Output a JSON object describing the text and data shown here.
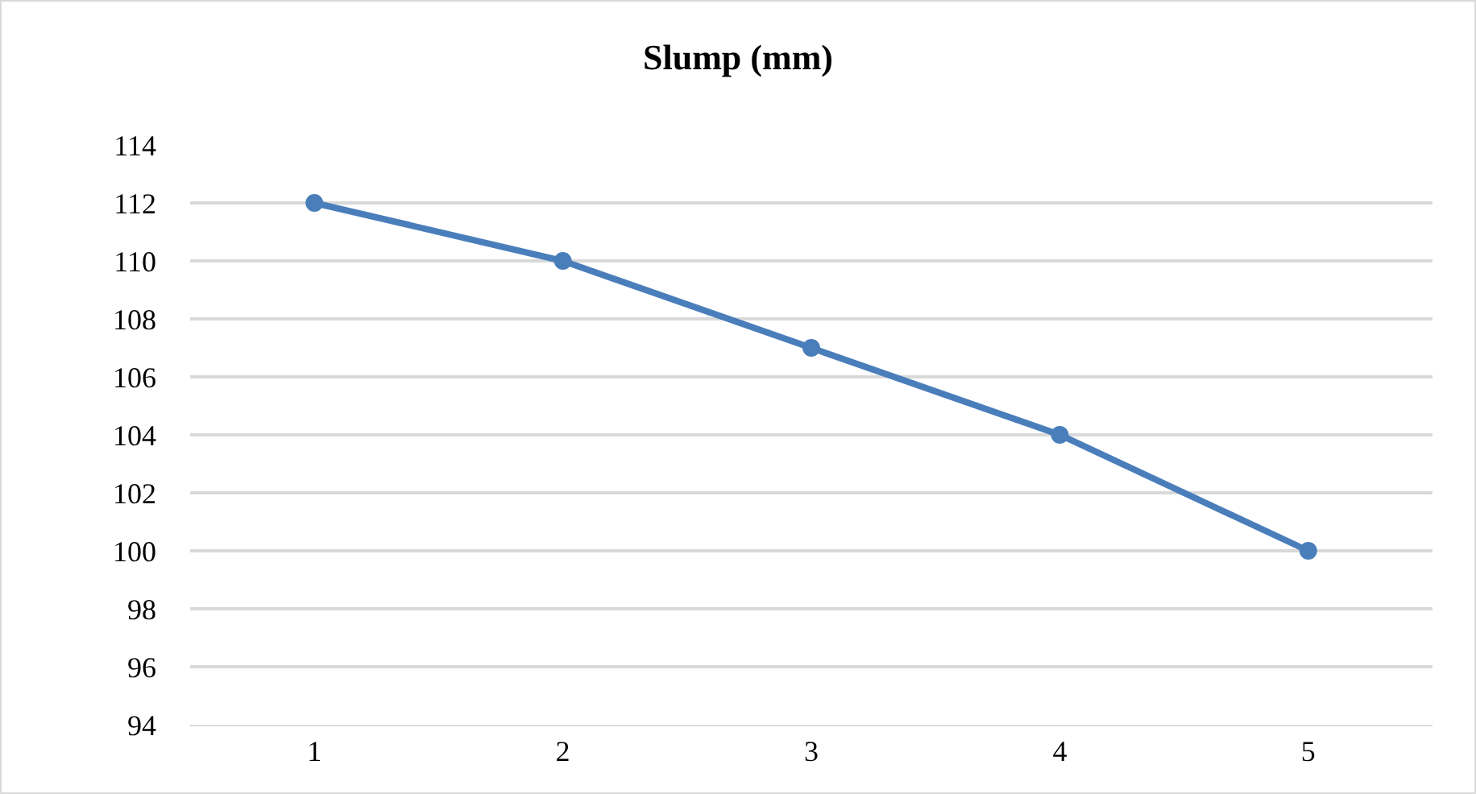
{
  "chart_data": {
    "type": "line",
    "title": "Slump (mm)",
    "categories": [
      "1",
      "2",
      "3",
      "4",
      "5"
    ],
    "series": [
      {
        "color": "#4a7ebb",
        "values": [
          112,
          110,
          107,
          104,
          100
        ]
      }
    ],
    "ylim": [
      94,
      114
    ],
    "yticks": [
      94,
      96,
      98,
      100,
      102,
      104,
      106,
      108,
      110,
      112,
      114
    ],
    "grid": "y",
    "legend": false,
    "marker": "circle",
    "line_style": "solid"
  }
}
